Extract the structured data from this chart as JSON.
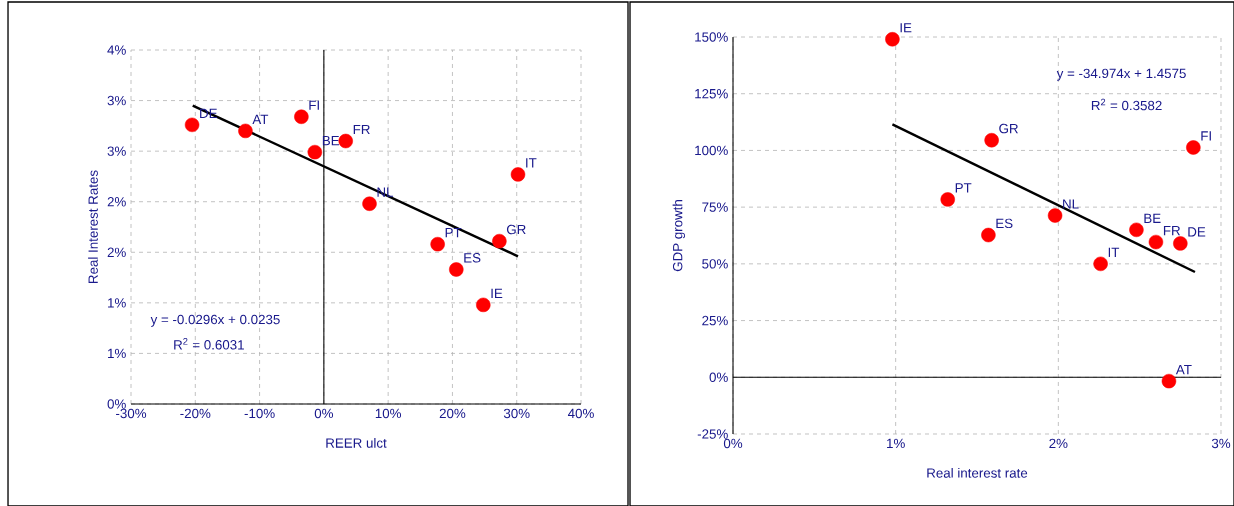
{
  "chart_data": [
    {
      "type": "scatter",
      "xlabel": "REER ulct",
      "ylabel": "Real Interest Rates",
      "xlim": [
        -0.3,
        0.4
      ],
      "ylim": [
        0,
        0.035
      ],
      "xticks": [
        {
          "value": -0.3,
          "label": "-30%"
        },
        {
          "value": -0.2,
          "label": "-20%"
        },
        {
          "value": -0.1,
          "label": "-10%"
        },
        {
          "value": 0,
          "label": "0%"
        },
        {
          "value": 0.1,
          "label": "10%"
        },
        {
          "value": 0.2,
          "label": "20%"
        },
        {
          "value": 0.3,
          "label": "30%"
        },
        {
          "value": 0.4,
          "label": "40%"
        }
      ],
      "yticks": [
        {
          "value": 0,
          "label": "0%"
        },
        {
          "value": 0.005,
          "label": "1%"
        },
        {
          "value": 0.01,
          "label": "1%"
        },
        {
          "value": 0.015,
          "label": "2%"
        },
        {
          "value": 0.02,
          "label": "2%"
        },
        {
          "value": 0.025,
          "label": "3%"
        },
        {
          "value": 0.03,
          "label": "3%"
        },
        {
          "value": 0.035,
          "label": "4%"
        }
      ],
      "grid": true,
      "marker": "circle",
      "series": [
        {
          "color": "#ff0000",
          "x": [
            -0.205,
            -0.122,
            -0.035,
            -0.014,
            0.034,
            0.071,
            0.177,
            0.206,
            0.248,
            0.273,
            0.302
          ],
          "values": [
            0.0276,
            0.027,
            0.0284,
            0.0249,
            0.026,
            0.0198,
            0.0158,
            0.0133,
            0.0098,
            0.0161,
            0.0227
          ]
        },
        {
          "type": "line",
          "marker": "none",
          "color": "#000000",
          "x": [
            -0.204,
            0.302
          ],
          "values": [
            0.0295,
            0.0146
          ]
        }
      ],
      "annotations": [
        {
          "text": "DE",
          "x": -0.205,
          "y": 0.0276
        },
        {
          "text": "AT",
          "x": -0.122,
          "y": 0.027
        },
        {
          "text": "FI",
          "x": -0.035,
          "y": 0.0284
        },
        {
          "text": "BE",
          "x": -0.014,
          "y": 0.0249
        },
        {
          "text": "FR",
          "x": 0.034,
          "y": 0.026
        },
        {
          "text": "NL",
          "x": 0.071,
          "y": 0.0198
        },
        {
          "text": "PT",
          "x": 0.177,
          "y": 0.0158
        },
        {
          "text": "ES",
          "x": 0.206,
          "y": 0.0133
        },
        {
          "text": "IE",
          "x": 0.248,
          "y": 0.0098
        },
        {
          "text": "GR",
          "x": 0.273,
          "y": 0.0161
        },
        {
          "text": "IT",
          "x": 0.302,
          "y": 0.0227
        },
        "y = -0.0296x + 0.0235",
        "R$^{2}$ = 0.6031"
      ]
    },
    {
      "type": "scatter",
      "xlabel": "Real interest rate",
      "ylabel": "GDP growth",
      "xlim": [
        0,
        0.03
      ],
      "ylim": [
        -0.25,
        1.5
      ],
      "xticks": [
        {
          "value": 0,
          "label": "0%"
        },
        {
          "value": 0.01,
          "label": "1%"
        },
        {
          "value": 0.02,
          "label": "2%"
        },
        {
          "value": 0.03,
          "label": "3%"
        }
      ],
      "yticks": [
        {
          "value": -0.25,
          "label": "-25%"
        },
        {
          "value": 0,
          "label": "0%"
        },
        {
          "value": 0.25,
          "label": "25%"
        },
        {
          "value": 0.5,
          "label": "50%"
        },
        {
          "value": 0.75,
          "label": "75%"
        },
        {
          "value": 1.0,
          "label": "100%"
        },
        {
          "value": 1.25,
          "label": "125%"
        },
        {
          "value": 1.5,
          "label": "150%"
        }
      ],
      "grid": true,
      "marker": "circle",
      "series": [
        {
          "color": "#ff0000",
          "x": [
            0.0098,
            0.0159,
            0.0283,
            0.0132,
            0.0157,
            0.0198,
            0.0248,
            0.026,
            0.0275,
            0.0226,
            0.0268
          ],
          "values": [
            1.49,
            1.045,
            1.013,
            0.784,
            0.627,
            0.713,
            0.65,
            0.596,
            0.59,
            0.5,
            -0.017
          ]
        },
        {
          "type": "line",
          "marker": "none",
          "color": "#000000",
          "x": [
            0.0098,
            0.0284
          ],
          "values": [
            1.115,
            0.464
          ]
        }
      ],
      "annotations": [
        {
          "text": "IE",
          "x": 0.0098,
          "y": 1.49
        },
        {
          "text": "GR",
          "x": 0.0159,
          "y": 1.045
        },
        {
          "text": "FI",
          "x": 0.0283,
          "y": 1.013
        },
        {
          "text": "PT",
          "x": 0.0132,
          "y": 0.784
        },
        {
          "text": "ES",
          "x": 0.0157,
          "y": 0.627
        },
        {
          "text": "NL",
          "x": 0.0198,
          "y": 0.713
        },
        {
          "text": "BE",
          "x": 0.0248,
          "y": 0.65
        },
        {
          "text": "FR",
          "x": 0.026,
          "y": 0.596
        },
        {
          "text": "DE",
          "x": 0.0275,
          "y": 0.59
        },
        {
          "text": "IT",
          "x": 0.0226,
          "y": 0.5
        },
        {
          "text": "AT",
          "x": 0.0268,
          "y": -0.017
        },
        "y = -34.974x + 1.4575",
        "R$^{2}$ = 0.3582"
      ]
    }
  ]
}
